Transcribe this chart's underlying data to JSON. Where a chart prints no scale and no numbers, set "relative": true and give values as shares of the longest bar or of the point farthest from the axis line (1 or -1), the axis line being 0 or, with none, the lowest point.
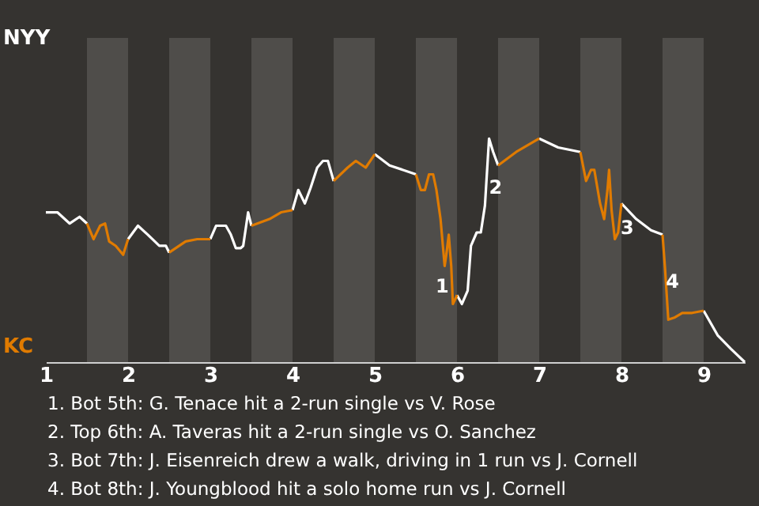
{
  "chart_data": {
    "type": "line",
    "relative": true,
    "xlim": [
      1,
      9.5
    ],
    "xticks": [
      1,
      2,
      3,
      4,
      5,
      6,
      7,
      8,
      9
    ],
    "bands": [
      {
        "axis": "x",
        "from": 1.5,
        "to": 2,
        "color": "#4f4d4a"
      },
      {
        "axis": "x",
        "from": 2.5,
        "to": 3,
        "color": "#4f4d4a"
      },
      {
        "axis": "x",
        "from": 3.5,
        "to": 4,
        "color": "#4f4d4a"
      },
      {
        "axis": "x",
        "from": 4.5,
        "to": 5,
        "color": "#4f4d4a"
      },
      {
        "axis": "x",
        "from": 5.5,
        "to": 6,
        "color": "#4f4d4a"
      },
      {
        "axis": "x",
        "from": 6.5,
        "to": 7,
        "color": "#4f4d4a"
      },
      {
        "axis": "x",
        "from": 7.5,
        "to": 8,
        "color": "#4f4d4a"
      },
      {
        "axis": "x",
        "from": 8.5,
        "to": 9,
        "color": "#4f4d4a"
      }
    ],
    "series": [
      {
        "color": "#ffffff",
        "x": [
          1,
          1.14,
          1.29,
          1.41,
          1.5,
          1.75,
          2,
          2.12,
          2.24,
          2.38,
          2.46,
          2.5,
          2.75,
          3,
          3.07,
          3.19,
          3.25,
          3.31,
          3.37,
          3.4,
          3.46,
          3.5,
          3.75,
          4,
          4.07,
          4.15,
          4.22,
          4.3,
          4.37,
          4.43,
          4.5,
          4.75,
          5,
          5.18,
          5.5,
          5.75,
          6,
          6.06,
          6.13,
          6.17,
          6.24,
          6.29,
          6.34,
          6.39,
          6.44,
          6.5,
          6.75,
          7,
          7.23,
          7.5,
          7.75,
          8,
          8.18,
          8.36,
          8.5,
          8.75,
          9,
          9.17,
          9.33,
          9.5
        ],
        "values": [
          0.67,
          0.67,
          0.62,
          0.65,
          0.62,
          null,
          0.55,
          0.61,
          0.57,
          0.52,
          0.52,
          0.49,
          null,
          0.55,
          0.61,
          0.61,
          0.57,
          0.51,
          0.51,
          0.52,
          0.67,
          0.61,
          null,
          0.68,
          0.77,
          0.71,
          0.78,
          0.87,
          0.9,
          0.9,
          0.81,
          null,
          0.93,
          0.88,
          0.84,
          null,
          0.3,
          0.26,
          0.32,
          0.52,
          0.58,
          0.58,
          0.7,
          1,
          0.94,
          0.88,
          null,
          1,
          0.96,
          0.94,
          null,
          0.71,
          0.64,
          0.59,
          0.57,
          null,
          0.23,
          0.12,
          0.06,
          0
        ]
      },
      {
        "color": "#e07b00",
        "x": [
          1.5,
          1.58,
          1.66,
          1.72,
          1.77,
          1.85,
          1.94,
          2,
          2.25,
          2.5,
          2.7,
          2.84,
          3,
          3.25,
          3.5,
          3.72,
          3.86,
          4,
          4.25,
          4.5,
          4.67,
          4.77,
          4.89,
          5,
          5.25,
          5.5,
          5.56,
          5.61,
          5.66,
          5.71,
          5.75,
          5.8,
          5.85,
          5.87,
          5.9,
          5.93,
          5.95,
          5.99,
          6,
          6.25,
          6.5,
          6.72,
          7,
          7.25,
          7.5,
          7.57,
          7.63,
          7.67,
          7.74,
          7.79,
          7.83,
          7.85,
          7.88,
          7.92,
          7.96,
          8,
          8.25,
          8.5,
          8.53,
          8.57,
          8.65,
          8.74,
          8.86,
          9
        ],
        "values": [
          0.62,
          0.55,
          0.61,
          0.62,
          0.54,
          0.52,
          0.48,
          0.55,
          null,
          0.49,
          0.54,
          0.55,
          0.55,
          null,
          0.61,
          0.64,
          0.67,
          0.68,
          null,
          0.81,
          0.87,
          0.9,
          0.87,
          0.93,
          null,
          0.84,
          0.77,
          0.77,
          0.84,
          0.84,
          0.77,
          0.64,
          0.43,
          0.48,
          0.57,
          0.43,
          0.26,
          0.29,
          0.3,
          null,
          0.88,
          0.94,
          1,
          null,
          0.94,
          0.81,
          0.86,
          0.86,
          0.71,
          0.64,
          0.77,
          0.86,
          0.68,
          0.55,
          0.58,
          0.71,
          null,
          0.57,
          0.42,
          0.19,
          0.2,
          0.22,
          0.22,
          0.23
        ]
      }
    ],
    "annotations": [
      {
        "text": "1",
        "x": 5.82,
        "y": 0.34
      },
      {
        "text": "2",
        "x": 6.47,
        "y": 0.78
      },
      {
        "text": "3",
        "x": 8.07,
        "y": 0.6
      },
      {
        "text": "4",
        "x": 8.62,
        "y": 0.36
      },
      "NYY",
      "KC",
      "1. Bot 5th: G. Tenace hit a 2-run single vs V. Rose",
      "2. Top 6th: A. Taveras hit a 2-run single vs O. Sanchez",
      "3. Bot 7th: J. Eisenreich drew a walk, driving in 1 run vs J. Cornell",
      "4. Bot 8th: J. Youngblood hit a solo home run vs J. Cornell"
    ]
  }
}
